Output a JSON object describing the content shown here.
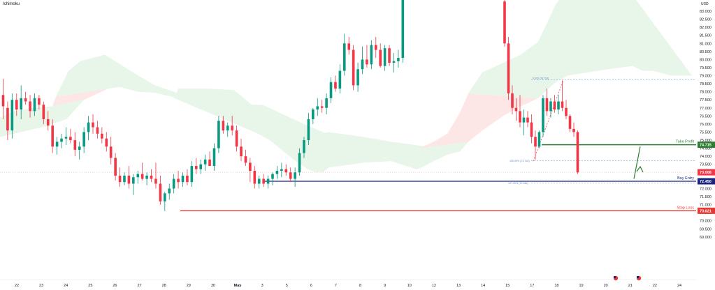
{
  "legend": {
    "indicator": "Ichimoku"
  },
  "chart_data": {
    "type": "candlestick",
    "currency": "USD",
    "y_ticks": [
      "83.000",
      "82.500",
      "82.000",
      "81.500",
      "81.000",
      "80.500",
      "80.000",
      "79.500",
      "79.000",
      "78.500",
      "78.000",
      "77.500",
      "77.000",
      "76.500",
      "76.000",
      "75.500",
      "75.000",
      "74.500",
      "74.000",
      "73.500",
      "73.000",
      "72.500",
      "72.000",
      "71.500",
      "71.000",
      "70.500",
      "70.000",
      "69.500",
      "69.000"
    ],
    "x_ticks": [
      "22",
      "23",
      "24",
      "25",
      "26",
      "27",
      "28",
      "29",
      "30",
      "May",
      "3",
      "5",
      "6",
      "7",
      "8",
      "9",
      "10",
      "12",
      "13",
      "14",
      "15",
      "17",
      "18",
      "19",
      "20",
      "21",
      "22",
      "24"
    ],
    "ylim": [
      68.7,
      83.6
    ],
    "levels": {
      "take_profit": {
        "label": "Take Profit",
        "price": "74.715",
        "value": 74.715,
        "color": "#2e7d32"
      },
      "buy_entry": {
        "label": "Buy Entry",
        "price": "72.450",
        "value": 72.45,
        "color": "#1a237e"
      },
      "stop_loss": {
        "label": "Stop Loss",
        "price": "70.621",
        "value": 70.621,
        "color": "#e53935"
      },
      "last_price": {
        "price": "73.008",
        "value": 73.008,
        "color": "#f23645"
      }
    },
    "fib_labels": {
      "upper": "0.005 (78.733)",
      "middle": "100.00% (73.718)",
      "lower": "127.20% (72.346)"
    },
    "fib_values": {
      "upper": 78.733,
      "middle": 73.718,
      "lower": 72.346
    },
    "candles_left": [
      [
        77.8,
        78.8,
        76.3,
        77.1
      ],
      [
        77.0,
        77.4,
        75.0,
        75.6
      ],
      [
        75.6,
        77.9,
        75.1,
        77.5
      ],
      [
        77.5,
        77.9,
        76.5,
        76.9
      ],
      [
        76.9,
        78.4,
        76.3,
        77.6
      ],
      [
        77.6,
        78.0,
        77.2,
        77.4
      ],
      [
        77.4,
        77.8,
        76.4,
        76.8
      ],
      [
        76.8,
        77.9,
        76.5,
        77.6
      ],
      [
        77.6,
        77.8,
        76.9,
        77.2
      ],
      [
        77.2,
        77.4,
        76.0,
        76.3
      ],
      [
        76.3,
        76.8,
        75.6,
        75.9
      ],
      [
        75.9,
        76.3,
        74.2,
        74.6
      ],
      [
        74.6,
        75.2,
        74.1,
        74.9
      ],
      [
        74.9,
        75.4,
        74.5,
        75.1
      ],
      [
        75.1,
        75.8,
        74.7,
        75.2
      ],
      [
        75.2,
        75.7,
        74.8,
        75.0
      ],
      [
        75.0,
        75.5,
        74.0,
        74.4
      ],
      [
        74.4,
        74.9,
        73.8,
        74.6
      ],
      [
        74.6,
        75.8,
        74.2,
        75.5
      ],
      [
        75.5,
        76.5,
        75.0,
        76.1
      ],
      [
        76.1,
        76.6,
        75.4,
        75.8
      ],
      [
        75.8,
        76.2,
        75.1,
        75.4
      ],
      [
        75.4,
        75.8,
        74.8,
        75.1
      ],
      [
        75.1,
        75.5,
        74.3,
        74.6
      ],
      [
        74.6,
        75.2,
        73.5,
        73.9
      ],
      [
        73.9,
        74.2,
        72.5,
        72.8
      ],
      [
        72.8,
        73.3,
        72.1,
        72.4
      ],
      [
        72.4,
        73.0,
        72.2,
        72.8
      ],
      [
        72.8,
        73.4,
        72.0,
        72.3
      ],
      [
        72.3,
        72.9,
        71.6,
        72.7
      ],
      [
        72.7,
        73.1,
        72.3,
        72.9
      ],
      [
        72.9,
        73.6,
        72.5,
        72.6
      ],
      [
        72.6,
        73.0,
        72.2,
        72.8
      ],
      [
        72.8,
        73.2,
        72.4,
        72.6
      ],
      [
        72.6,
        73.6,
        72.0,
        72.3
      ],
      [
        72.3,
        72.8,
        71.0,
        71.2
      ],
      [
        71.2,
        71.8,
        70.6,
        71.7
      ],
      [
        71.7,
        72.3,
        71.3,
        72.0
      ],
      [
        72.0,
        72.9,
        71.7,
        72.6
      ],
      [
        72.6,
        73.1,
        72.0,
        72.4
      ],
      [
        72.4,
        73.0,
        72.1,
        72.8
      ],
      [
        72.8,
        73.2,
        72.2,
        72.4
      ],
      [
        72.4,
        73.7,
        72.1,
        73.4
      ],
      [
        73.4,
        73.9,
        72.9,
        73.2
      ],
      [
        73.2,
        73.8,
        72.9,
        73.5
      ],
      [
        73.5,
        74.1,
        73.1,
        73.8
      ],
      [
        73.8,
        74.3,
        73.4,
        73.4
      ],
      [
        73.4,
        74.8,
        73.1,
        74.5
      ],
      [
        74.5,
        76.5,
        74.2,
        76.2
      ],
      [
        76.2,
        76.5,
        75.4,
        75.6
      ],
      [
        75.6,
        76.1,
        75.2,
        75.9
      ],
      [
        75.9,
        76.5,
        75.3,
        75.6
      ],
      [
        75.6,
        75.9,
        74.3,
        74.6
      ],
      [
        74.6,
        75.1,
        73.7,
        74.0
      ],
      [
        74.0,
        74.4,
        73.4,
        73.6
      ],
      [
        73.6,
        73.9,
        72.4,
        73.1
      ],
      [
        73.1,
        73.4,
        72.0,
        72.3
      ],
      [
        72.3,
        72.8,
        72.0,
        72.6
      ],
      [
        72.6,
        72.9,
        72.1,
        72.3
      ],
      [
        72.3,
        72.8,
        72.0,
        72.6
      ],
      [
        72.6,
        73.0,
        72.2,
        72.9
      ],
      [
        72.9,
        73.4,
        72.6,
        73.1
      ],
      [
        73.1,
        73.6,
        72.7,
        73.2
      ],
      [
        73.2,
        73.5,
        72.8,
        73.0
      ],
      [
        73.0,
        73.3,
        72.4,
        72.6
      ],
      [
        72.6,
        73.3,
        72.1,
        73.0
      ],
      [
        73.0,
        74.5,
        72.8,
        74.2
      ],
      [
        74.2,
        75.2,
        73.9,
        75.0
      ],
      [
        75.0,
        76.7,
        74.7,
        76.3
      ],
      [
        76.3,
        77.0,
        76.0,
        76.9
      ],
      [
        76.9,
        77.6,
        76.5,
        77.1
      ],
      [
        77.1,
        77.5,
        76.7,
        77.0
      ],
      [
        77.0,
        77.9,
        76.6,
        77.6
      ],
      [
        77.6,
        78.9,
        77.3,
        78.6
      ],
      [
        78.6,
        79.0,
        78.0,
        78.2
      ],
      [
        78.2,
        79.7,
        77.9,
        79.3
      ],
      [
        79.3,
        81.6,
        79.0,
        81.0
      ],
      [
        81.0,
        81.4,
        80.3,
        80.6
      ],
      [
        80.6,
        80.9,
        78.1,
        78.4
      ],
      [
        78.4,
        79.8,
        78.0,
        79.4
      ],
      [
        79.4,
        80.8,
        79.1,
        80.0
      ],
      [
        80.0,
        80.9,
        79.5,
        79.7
      ],
      [
        79.7,
        81.2,
        79.4,
        80.9
      ],
      [
        80.9,
        81.4,
        80.1,
        80.6
      ],
      [
        80.6,
        81.0,
        79.5,
        79.6
      ],
      [
        79.6,
        80.9,
        79.3,
        80.7
      ],
      [
        80.7,
        80.9,
        79.6,
        79.8
      ],
      [
        79.8,
        80.4,
        79.2,
        79.9
      ],
      [
        79.9,
        80.6,
        79.5,
        80.1
      ],
      [
        80.1,
        84.3,
        79.8,
        84.0
      ]
    ],
    "candles_right": [
      [
        83.6,
        83.9,
        80.8,
        81.0
      ],
      [
        81.0,
        81.4,
        77.5,
        77.9
      ],
      [
        77.9,
        78.4,
        76.6,
        77.0
      ],
      [
        77.0,
        77.6,
        76.2,
        76.8
      ],
      [
        76.8,
        77.8,
        75.8,
        76.1
      ],
      [
        76.1,
        76.9,
        75.3,
        76.4
      ],
      [
        76.4,
        76.8,
        75.8,
        76.1
      ],
      [
        76.1,
        76.6,
        74.8,
        75.2
      ],
      [
        75.2,
        75.6,
        73.8,
        74.6
      ],
      [
        74.6,
        75.6,
        74.5,
        75.5
      ],
      [
        75.5,
        77.8,
        75.2,
        77.6
      ],
      [
        77.6,
        78.2,
        76.5,
        76.8
      ],
      [
        76.8,
        77.6,
        76.4,
        77.4
      ],
      [
        77.4,
        77.8,
        76.7,
        76.9
      ],
      [
        76.9,
        77.8,
        76.6,
        77.4
      ],
      [
        77.4,
        78.7,
        76.8,
        77.0
      ],
      [
        77.0,
        77.5,
        76.3,
        76.5
      ],
      [
        76.5,
        76.6,
        75.5,
        75.7
      ],
      [
        75.7,
        76.1,
        75.2,
        75.5
      ],
      [
        75.5,
        75.6,
        72.9,
        73.0
      ]
    ],
    "kumo": {
      "top_nodes": [
        [
          0,
          76.4
        ],
        [
          20,
          76.8
        ],
        [
          48,
          77.0
        ],
        [
          75,
          77.1
        ],
        [
          80,
          77.7
        ],
        [
          98,
          79.3
        ],
        [
          115,
          79.9
        ],
        [
          150,
          80.3
        ],
        [
          165,
          79.8
        ],
        [
          175,
          79.1
        ],
        [
          182,
          78.5
        ],
        [
          196,
          78.2
        ],
        [
          238,
          78.1
        ],
        [
          250,
          77.6
        ],
        [
          255,
          78.2
        ],
        [
          295,
          78.2
        ],
        [
          335,
          78.1
        ],
        [
          360,
          77.2
        ],
        [
          375,
          77.2
        ],
        [
          390,
          76.9
        ],
        [
          420,
          76.3
        ],
        [
          440,
          75.9
        ],
        [
          452,
          75.4
        ],
        [
          462,
          75.4
        ],
        [
          470,
          75.5
        ],
        [
          520,
          75.2
        ],
        [
          560,
          74.9
        ],
        [
          600,
          74.5
        ],
        [
          620,
          74.9
        ],
        [
          640,
          75.4
        ],
        [
          658,
          76.7
        ],
        [
          670,
          77.9
        ],
        [
          690,
          79.2
        ],
        [
          720,
          79.8
        ],
        [
          745,
          80.3
        ],
        [
          770,
          81.1
        ],
        [
          795,
          83.4
        ],
        [
          812,
          84.5
        ],
        [
          870,
          84.5
        ],
        [
          905,
          84.0
        ],
        [
          920,
          83.3
        ],
        [
          935,
          81.9
        ],
        [
          960,
          81.9
        ],
        [
          990,
          81.4
        ]
      ],
      "bottom_nodes": [
        [
          0,
          75.2
        ],
        [
          60,
          75.8
        ],
        [
          95,
          76.3
        ],
        [
          120,
          77.5
        ],
        [
          155,
          78.2
        ],
        [
          172,
          78.3
        ],
        [
          196,
          78.0
        ],
        [
          238,
          77.9
        ],
        [
          250,
          77.7
        ],
        [
          255,
          77.9
        ],
        [
          300,
          77.5
        ],
        [
          335,
          76.8
        ],
        [
          360,
          75.9
        ],
        [
          375,
          75.3
        ],
        [
          390,
          74.9
        ],
        [
          420,
          73.8
        ],
        [
          440,
          73.2
        ],
        [
          452,
          73.0
        ],
        [
          462,
          73.0
        ],
        [
          470,
          73.3
        ],
        [
          520,
          73.6
        ],
        [
          560,
          73.7
        ],
        [
          595,
          73.2
        ],
        [
          603,
          73.3
        ],
        [
          620,
          73.7
        ],
        [
          640,
          74.1
        ],
        [
          658,
          74.3
        ],
        [
          670,
          74.9
        ],
        [
          690,
          75.6
        ],
        [
          720,
          76.5
        ],
        [
          745,
          77.1
        ],
        [
          770,
          77.6
        ],
        [
          795,
          78.6
        ],
        [
          812,
          79.0
        ],
        [
          870,
          79.4
        ],
        [
          905,
          79.6
        ],
        [
          920,
          79.3
        ],
        [
          935,
          79.3
        ],
        [
          960,
          79.0
        ],
        [
          990,
          79.0
        ]
      ],
      "bull_color": "#e8f5e9",
      "bear_color": "#fde6e6"
    },
    "title": "",
    "xlabel": "",
    "ylabel": "",
    "grid": false
  }
}
